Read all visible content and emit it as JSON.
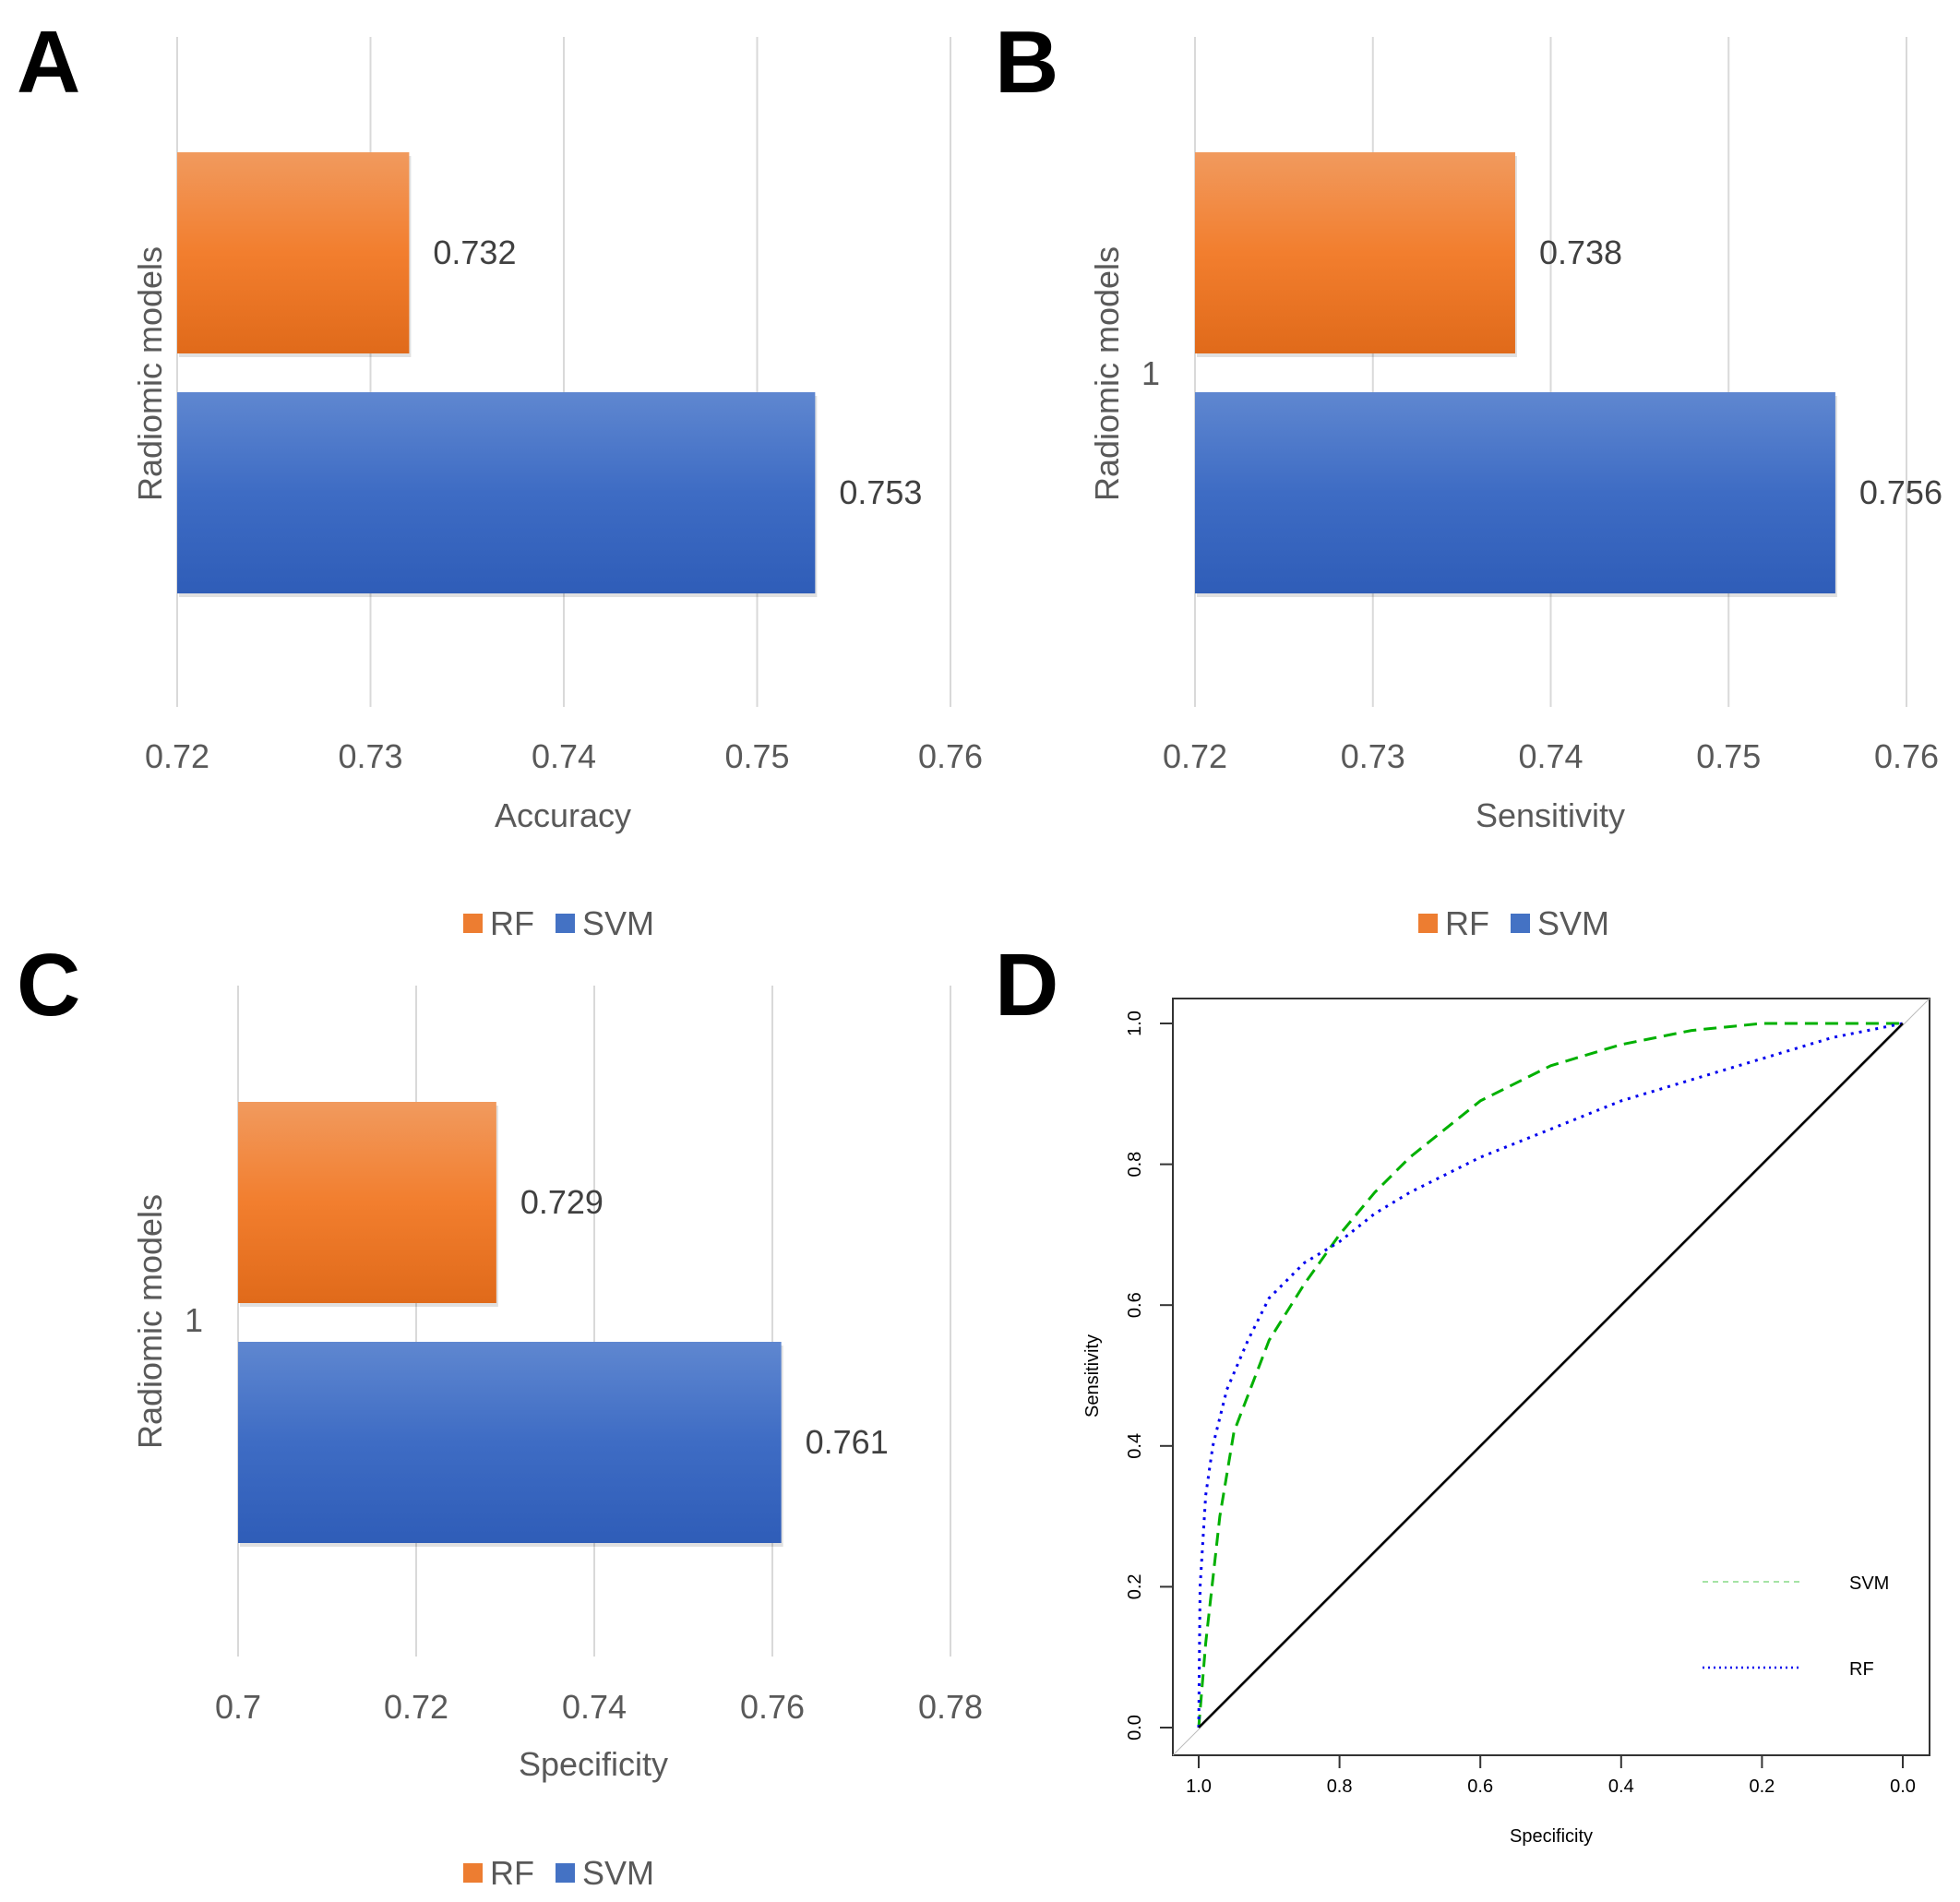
{
  "colors": {
    "rf": "#ED7D31",
    "svm": "#4472C4",
    "roc_svm": "#00B000",
    "roc_rf": "#0000EE",
    "grid": "#D9D9D9"
  },
  "legend": {
    "rf": "RF",
    "svm": "SVM"
  },
  "chart_data": [
    {
      "panel": "A",
      "type": "bar",
      "orientation": "horizontal",
      "category_label": "",
      "ylabel": "Radiomic models",
      "xlabel": "Accuracy",
      "xlim": [
        0.72,
        0.76
      ],
      "ticks": [
        "0.72",
        "0.73",
        "0.74",
        "0.75",
        "0.76"
      ],
      "series": [
        {
          "name": "RF",
          "value": 0.732,
          "label": "0.732"
        },
        {
          "name": "SVM",
          "value": 0.753,
          "label": "0.753"
        }
      ]
    },
    {
      "panel": "B",
      "type": "bar",
      "orientation": "horizontal",
      "category_label": "1",
      "ylabel": "Radiomic models",
      "xlabel": "Sensitivity",
      "xlim": [
        0.72,
        0.76
      ],
      "ticks": [
        "0.72",
        "0.73",
        "0.74",
        "0.75",
        "0.76"
      ],
      "series": [
        {
          "name": "RF",
          "value": 0.738,
          "label": "0.738"
        },
        {
          "name": "SVM",
          "value": 0.756,
          "label": "0.756"
        }
      ]
    },
    {
      "panel": "C",
      "type": "bar",
      "orientation": "horizontal",
      "category_label": "1",
      "ylabel": "Radiomic models",
      "xlabel": "Specificity",
      "xlim": [
        0.7,
        0.78
      ],
      "ticks": [
        "0.7",
        "0.72",
        "0.74",
        "0.76",
        "0.78"
      ],
      "series": [
        {
          "name": "RF",
          "value": 0.729,
          "label": "0.729"
        },
        {
          "name": "SVM",
          "value": 0.761,
          "label": "0.761"
        }
      ]
    },
    {
      "panel": "D",
      "type": "line",
      "subtype": "roc",
      "xlabel": "Specificity",
      "ylabel": "Sensitivity",
      "xlim": [
        1.0,
        0.0
      ],
      "ylim": [
        0.0,
        1.0
      ],
      "xticks": [
        "1.0",
        "0.8",
        "0.6",
        "0.4",
        "0.2",
        "0.0"
      ],
      "yticks": [
        "0.0",
        "0.2",
        "0.4",
        "0.6",
        "0.8",
        "1.0"
      ],
      "series": [
        {
          "name": "SVM",
          "style": "dashed",
          "x": [
            1.0,
            0.99,
            0.97,
            0.95,
            0.9,
            0.85,
            0.8,
            0.75,
            0.7,
            0.6,
            0.5,
            0.4,
            0.3,
            0.2,
            0.1,
            0.0
          ],
          "y": [
            0.0,
            0.12,
            0.3,
            0.42,
            0.55,
            0.63,
            0.7,
            0.76,
            0.81,
            0.89,
            0.94,
            0.97,
            0.99,
            1.0,
            1.0,
            1.0
          ]
        },
        {
          "name": "RF",
          "style": "dotted",
          "x": [
            1.0,
            0.998,
            0.99,
            0.98,
            0.96,
            0.93,
            0.9,
            0.85,
            0.8,
            0.75,
            0.7,
            0.6,
            0.5,
            0.4,
            0.3,
            0.2,
            0.1,
            0.0
          ],
          "y": [
            0.0,
            0.2,
            0.33,
            0.4,
            0.48,
            0.55,
            0.61,
            0.66,
            0.69,
            0.73,
            0.76,
            0.81,
            0.85,
            0.89,
            0.92,
            0.95,
            0.98,
            1.0
          ]
        },
        {
          "name": "reference",
          "style": "solid",
          "x": [
            1.0,
            0.0
          ],
          "y": [
            0.0,
            1.0
          ]
        }
      ],
      "legend_position": "bottom-right"
    }
  ]
}
